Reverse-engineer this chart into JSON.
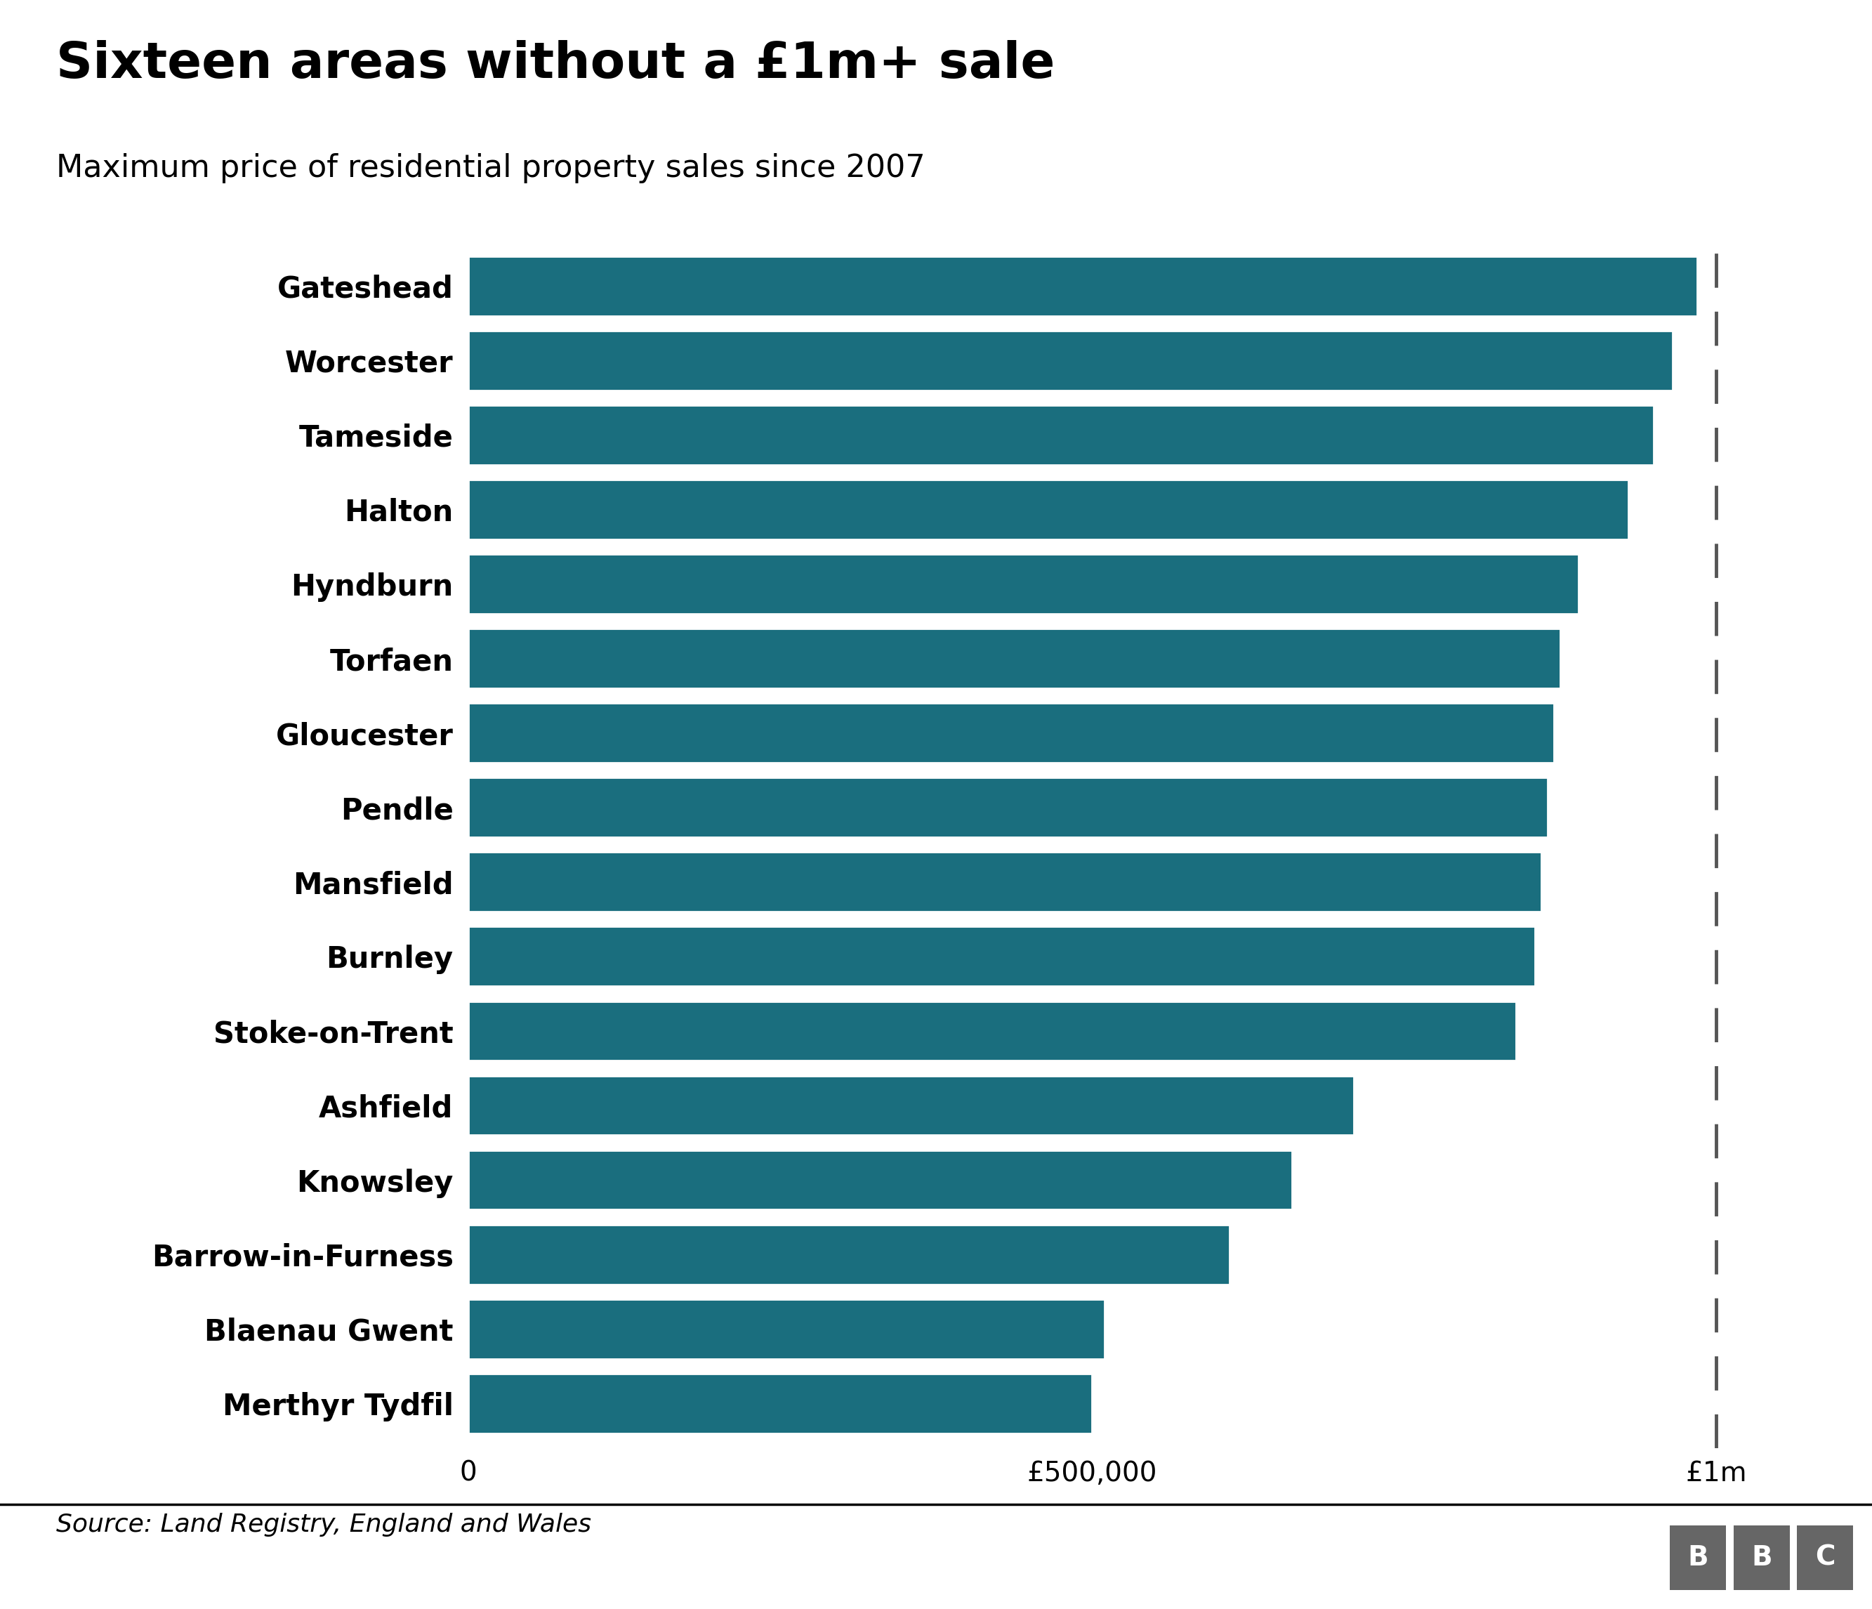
{
  "title": "Sixteen areas without a £1m+ sale",
  "subtitle": "Maximum price of residential property sales since 2007",
  "source": "Source: Land Registry, England and Wales",
  "bar_color": "#1a6e7e",
  "background_color": "#ffffff",
  "dashed_line_value": 1000000,
  "categories": [
    "Gateshead",
    "Worcester",
    "Tameside",
    "Halton",
    "Hyndburn",
    "Torfaen",
    "Gloucester",
    "Pendle",
    "Mansfield",
    "Burnley",
    "Stoke-on-Trent",
    "Ashfield",
    "Knowsley",
    "Barrow-in-Furness",
    "Blaenau Gwent",
    "Merthyr Tydfil"
  ],
  "values": [
    985000,
    965000,
    950000,
    930000,
    890000,
    875000,
    870000,
    865000,
    860000,
    855000,
    840000,
    710000,
    660000,
    610000,
    510000,
    500000
  ],
  "xlim": [
    0,
    1050000
  ],
  "xtick_values": [
    0,
    500000,
    1000000
  ],
  "xtick_labels": [
    "0",
    "£500,000",
    "£1m"
  ],
  "title_fontsize": 52,
  "subtitle_fontsize": 32,
  "tick_fontsize": 28,
  "label_fontsize": 30,
  "source_fontsize": 26,
  "bbc_color": "#666666"
}
